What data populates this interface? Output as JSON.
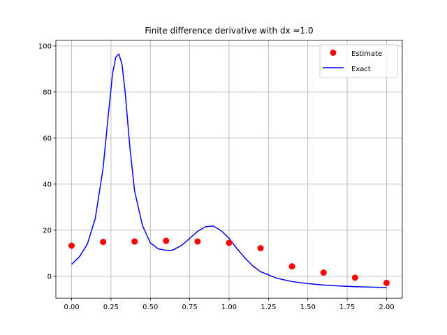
{
  "chart_data": {
    "type": "line",
    "title": "Finite difference derivative with dx =1.0",
    "xlabel": "",
    "ylabel": "",
    "xlim": [
      -0.1,
      2.1
    ],
    "ylim": [
      -9.5,
      102.5
    ],
    "xticks": [
      0.0,
      0.25,
      0.5,
      0.75,
      1.0,
      1.25,
      1.5,
      1.75,
      2.0
    ],
    "xtick_labels": [
      "0.00",
      "0.25",
      "0.50",
      "0.75",
      "1.00",
      "1.25",
      "1.50",
      "1.75",
      "2.00"
    ],
    "yticks": [
      0,
      20,
      40,
      60,
      80,
      100
    ],
    "ytick_labels": [
      "0",
      "20",
      "40",
      "60",
      "80",
      "100"
    ],
    "grid": true,
    "legend_position": "top-right",
    "series": [
      {
        "name": "Estimate",
        "kind": "scatter",
        "color": "#ff0000",
        "x": [
          0.0,
          0.2,
          0.4,
          0.6,
          0.8,
          1.0,
          1.2,
          1.4,
          1.6,
          1.8,
          2.0
        ],
        "y": [
          13.3,
          14.9,
          15.1,
          15.4,
          15.1,
          14.5,
          12.2,
          4.3,
          1.6,
          -0.6,
          -2.9
        ]
      },
      {
        "name": "Exact",
        "kind": "line",
        "color": "#0000ff",
        "x": [
          0.0,
          0.05,
          0.1,
          0.15,
          0.2,
          0.23,
          0.26,
          0.28,
          0.3,
          0.32,
          0.34,
          0.37,
          0.4,
          0.45,
          0.5,
          0.55,
          0.6,
          0.63,
          0.65,
          0.7,
          0.75,
          0.8,
          0.85,
          0.9,
          0.95,
          1.0,
          1.05,
          1.1,
          1.15,
          1.2,
          1.3,
          1.4,
          1.5,
          1.6,
          1.7,
          1.8,
          1.9,
          2.0
        ],
        "y": [
          5.2,
          8.5,
          14.0,
          25.0,
          47.0,
          68.0,
          88.0,
          95.0,
          96.5,
          92.0,
          80.0,
          56.0,
          37.0,
          22.0,
          14.5,
          11.9,
          11.3,
          11.2,
          11.6,
          13.5,
          16.5,
          19.5,
          21.5,
          21.8,
          19.8,
          16.5,
          12.0,
          8.0,
          4.5,
          2.0,
          -0.8,
          -2.3,
          -3.2,
          -3.8,
          -4.2,
          -4.5,
          -4.7,
          -4.9
        ]
      }
    ]
  }
}
